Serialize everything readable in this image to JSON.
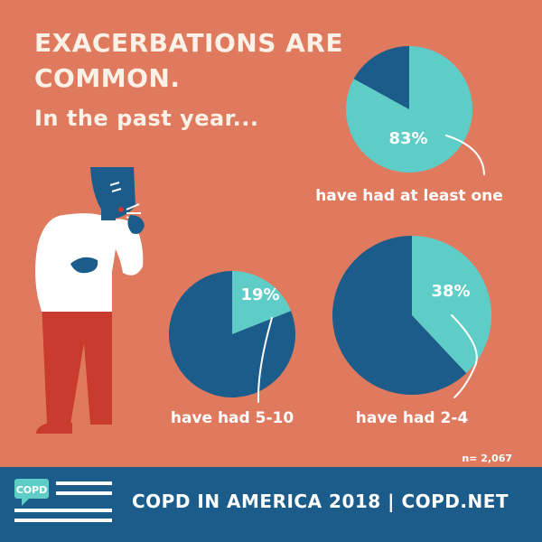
{
  "header": {
    "title_line1": "EXACERBATIONS ARE",
    "title_line2": "COMMON.",
    "subtitle": "In the past year..."
  },
  "colors": {
    "background": "#e07a5f",
    "navy": "#1b5c8a",
    "teal": "#5ecdc8",
    "white": "#ffffff",
    "red": "#c83b2e"
  },
  "chart_data": [
    {
      "type": "pie",
      "slices": [
        {
          "label": "have had at least one",
          "value": 83,
          "color": "#5ecdc8"
        },
        {
          "label": "",
          "value": 17,
          "color": "#1b5c8a"
        }
      ],
      "value_label": "83%",
      "caption": "have had at least one"
    },
    {
      "type": "pie",
      "slices": [
        {
          "label": "have had 5-10",
          "value": 19,
          "color": "#5ecdc8"
        },
        {
          "label": "",
          "value": 81,
          "color": "#1b5c8a"
        }
      ],
      "value_label": "19%",
      "caption": "have had 5-10"
    },
    {
      "type": "pie",
      "slices": [
        {
          "label": "have had 2-4",
          "value": 38,
          "color": "#5ecdc8"
        },
        {
          "label": "",
          "value": 62,
          "color": "#1b5c8a"
        }
      ],
      "value_label": "38%",
      "caption": "have had 2-4"
    }
  ],
  "sample_size": "n= 2,067",
  "footer": {
    "logo_text": "COPD",
    "text": "COPD IN AMERICA 2018 | COPD.NET"
  },
  "illustration": {
    "icon": "coughing-person-illustration"
  }
}
